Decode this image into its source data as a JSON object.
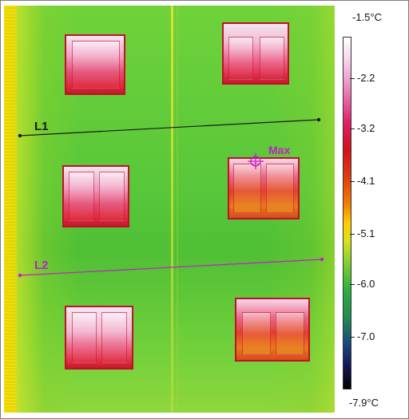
{
  "scale": {
    "max_label": "-1.5°C",
    "min_label": "-7.9°C",
    "ticks": [
      "-2.2",
      "-3.2",
      "-4.1",
      "-5.1",
      "-6.0",
      "-7.0"
    ]
  },
  "lines": {
    "l1": {
      "label": "L1",
      "color": "#1a1a1a"
    },
    "l2": {
      "label": "L2",
      "color": "#c21ec8"
    }
  },
  "marker": {
    "label": "Max",
    "color": "#c21ec8"
  },
  "palette": {
    "hot": "#ffffff",
    "warm": "#e0206a",
    "mid": "#ffd000",
    "cool": "#2ab040",
    "cold": "#000000"
  }
}
